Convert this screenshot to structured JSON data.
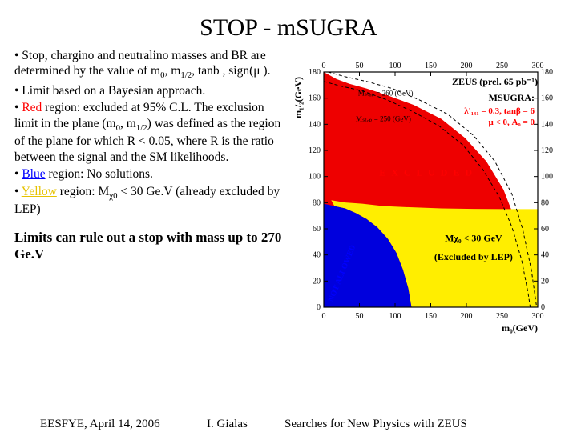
{
  "title": "STOP - mSUGRA",
  "bullets": {
    "b1a": "• Stop, chargino and neutralino masses and BR are determined by the value of m",
    "b1_sub1": "0",
    "b1b": ", m",
    "b1_sub2": "1/2",
    "b1c": ", tanb , sign(μ ).",
    "b2": "• Limit based on a Bayesian approach.",
    "b3a": "• ",
    "b3red": "Red",
    "b3b": " region: excluded at 95% C.L. The exclusion limit in the plane (m",
    "b3_sub1": "0",
    "b3c": ", m",
    "b3_sub2": "1/2",
    "b3d": ") was defined as the region of the plane for which R < 0.05, where R is the ratio between the signal and the SM likelihoods.",
    "b4a": "• ",
    "b4blue": "Blue",
    "b4b": " region: No solutions.",
    "b5a": "• ",
    "b5yellow": "Yellow",
    "b5b": " region: M",
    "b5_sub": "χ0",
    "b5c": " < 30 Ge.V (already excluded by LEP)"
  },
  "summary": "Limits can rule out a stop with mass up to 270 Ge.V",
  "footer": {
    "left": "EESFYE, April 14, 2006",
    "mid": "I. Gialas",
    "right": "Searches for New Physics with ZEUS"
  },
  "plot": {
    "bg": "#ffffff",
    "frame_fill": "#ffffff",
    "xlim": [
      0,
      300
    ],
    "ylim": [
      0,
      180
    ],
    "xticks": [
      0,
      50,
      100,
      150,
      200,
      250,
      300
    ],
    "yticks": [
      0,
      20,
      40,
      60,
      80,
      100,
      120,
      140,
      160,
      180
    ],
    "xlabel": "m₀(GeV)",
    "ylabel": "m₁/₂(GeV)",
    "tick_fontsize": 10,
    "label_fontsize": 12,
    "title_right": "ZEUS (prel. 65 pb⁻¹)",
    "title_right_fontsize": 12,
    "legend": {
      "header": "MSUGRA:",
      "line1": "λ'₁₃₁ = 0.3, tanβ = 6",
      "line2": "μ < 0, A₀ = 0",
      "fontsize": 11,
      "color_header": "#000000",
      "color_body": "#ff0000"
    },
    "regions": {
      "red": {
        "color": "#ee0000"
      },
      "blue": {
        "color": "#0000dd"
      },
      "yellow": {
        "color": "#ffee00"
      }
    },
    "annot": {
      "excluded": {
        "text": "E X C L U D E D",
        "color": "#ff0000",
        "fontsize": 12
      },
      "notallowed": {
        "text": "NOT ALLOWED",
        "color": "#0000ff",
        "fontsize": 10
      },
      "mchi": {
        "text": "Mχ₀ < 30 GeV",
        "color": "#000000",
        "fontsize": 12
      },
      "lep": {
        "text": "(Excluded by LEP)",
        "color": "#000000",
        "fontsize": 12
      },
      "mstop260": {
        "text": "Mₛₜₒₚ = 260 (GeV)",
        "color": "#000000",
        "fontsize": 9
      },
      "mstop250": {
        "text": "Mₛₜₒₚ = 250 (GeV)",
        "color": "#000000",
        "fontsize": 9
      }
    },
    "red_poly_norm": [
      [
        0,
        1.0
      ],
      [
        0.06,
        0.97
      ],
      [
        0.12,
        0.95
      ],
      [
        0.2,
        0.93
      ],
      [
        0.3,
        0.9
      ],
      [
        0.42,
        0.86
      ],
      [
        0.55,
        0.8
      ],
      [
        0.66,
        0.72
      ],
      [
        0.76,
        0.62
      ],
      [
        0.84,
        0.5
      ],
      [
        0.9,
        0.36
      ],
      [
        0.94,
        0.22
      ],
      [
        0.965,
        0.08
      ],
      [
        0.975,
        0.0
      ],
      [
        0,
        0
      ]
    ],
    "dash260_norm": [
      [
        0.02,
        1.0
      ],
      [
        0.1,
        0.98
      ],
      [
        0.2,
        0.96
      ],
      [
        0.32,
        0.93
      ],
      [
        0.45,
        0.88
      ],
      [
        0.58,
        0.82
      ],
      [
        0.7,
        0.73
      ],
      [
        0.8,
        0.62
      ],
      [
        0.88,
        0.48
      ],
      [
        0.93,
        0.33
      ],
      [
        0.97,
        0.16
      ],
      [
        0.995,
        0.0
      ]
    ],
    "dash250_norm": [
      [
        0,
        0.96
      ],
      [
        0.08,
        0.94
      ],
      [
        0.18,
        0.92
      ],
      [
        0.3,
        0.88
      ],
      [
        0.42,
        0.83
      ],
      [
        0.54,
        0.77
      ],
      [
        0.65,
        0.69
      ],
      [
        0.74,
        0.59
      ],
      [
        0.82,
        0.47
      ],
      [
        0.88,
        0.34
      ],
      [
        0.925,
        0.2
      ],
      [
        0.955,
        0.06
      ],
      [
        0.965,
        0.0
      ]
    ],
    "blue_poly_norm": [
      [
        0,
        0.44
      ],
      [
        0.05,
        0.43
      ],
      [
        0.1,
        0.42
      ],
      [
        0.15,
        0.4
      ],
      [
        0.2,
        0.375
      ],
      [
        0.25,
        0.34
      ],
      [
        0.3,
        0.29
      ],
      [
        0.34,
        0.23
      ],
      [
        0.37,
        0.16
      ],
      [
        0.395,
        0.08
      ],
      [
        0.41,
        0.0
      ],
      [
        0,
        0
      ]
    ],
    "yellow_poly_norm": [
      [
        0.035,
        0.455
      ],
      [
        0.1,
        0.445
      ],
      [
        0.18,
        0.44
      ],
      [
        0.28,
        0.43
      ],
      [
        0.4,
        0.425
      ],
      [
        0.55,
        0.42
      ],
      [
        0.7,
        0.418
      ],
      [
        0.85,
        0.417
      ],
      [
        1.0,
        0.417
      ],
      [
        1.0,
        0
      ],
      [
        0.41,
        0
      ],
      [
        0.395,
        0.08
      ],
      [
        0.37,
        0.16
      ],
      [
        0.34,
        0.23
      ],
      [
        0.3,
        0.29
      ],
      [
        0.25,
        0.34
      ],
      [
        0.2,
        0.375
      ],
      [
        0.15,
        0.4
      ],
      [
        0.1,
        0.42
      ],
      [
        0.05,
        0.43
      ]
    ]
  }
}
